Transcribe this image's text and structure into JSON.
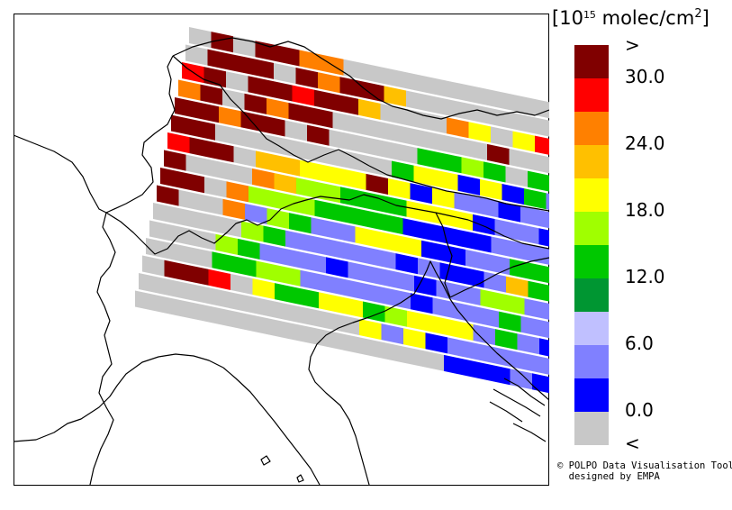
{
  "legend": {
    "unit_base": "10",
    "unit_exp": "15",
    "unit_suffix": "molec/cm",
    "unit_sq": "2",
    "classes": [
      {
        "label": ">",
        "color": "#800000"
      },
      {
        "label": "30.0",
        "color": "#ff0000"
      },
      {
        "label": "",
        "color": "#ff8000"
      },
      {
        "label": "24.0",
        "color": "#ffc000"
      },
      {
        "label": "",
        "color": "#ffff00"
      },
      {
        "label": "18.0",
        "color": "#a0ff00"
      },
      {
        "label": "",
        "color": "#00c800"
      },
      {
        "label": "12.0",
        "color": "#009632"
      },
      {
        "label": "",
        "color": "#c0c0ff"
      },
      {
        "label": "6.0",
        "color": "#8080ff"
      },
      {
        "label": "",
        "color": "#0000ff"
      },
      {
        "label": "0.0",
        "color": "#c8c8c8"
      },
      {
        "label": "<",
        "color": ""
      }
    ]
  },
  "credit": {
    "line1": "© POLPO Data Visualisation Tool",
    "line2": "  designed by EMPA"
  },
  "swath": {
    "rows": [
      "GDGDDOOGGGGGGGGGGGGGG",
      "GDDDGDODDYGGGGGGGGGGG",
      "RDGDDRDDYGGGOLGLRODGG",
      "ODGDODDGGGGGGGDGGGGGG",
      "DDODDGDGGGGKKAKGKGGLA",
      "DDGGGGGGGGKLLBLBKMMMM",
      "RDDGYYLLLDLBLMMBMMMMA",
      "DGGGOYAAKKKLLLBMMBMKA",
      "DDGOAAAKKKKBBBBMMMMMM",
      "DGGOMAKMMLLLBBMMKKMMM",
      "GGGGAKMMMMMBMBBMYKMMB",
      "GGGAKMMMBMMMBMMAAMMMB",
      "GGGKKAAMMMMMBMMMKMMMB",
      "GDDRGLKKLLKALLLMKMBMB",
      "GGGGGGGGGGLMLBMMMMMMB",
      "GGGGGGGGGGGGGGBBBMBBB"
    ]
  }
}
